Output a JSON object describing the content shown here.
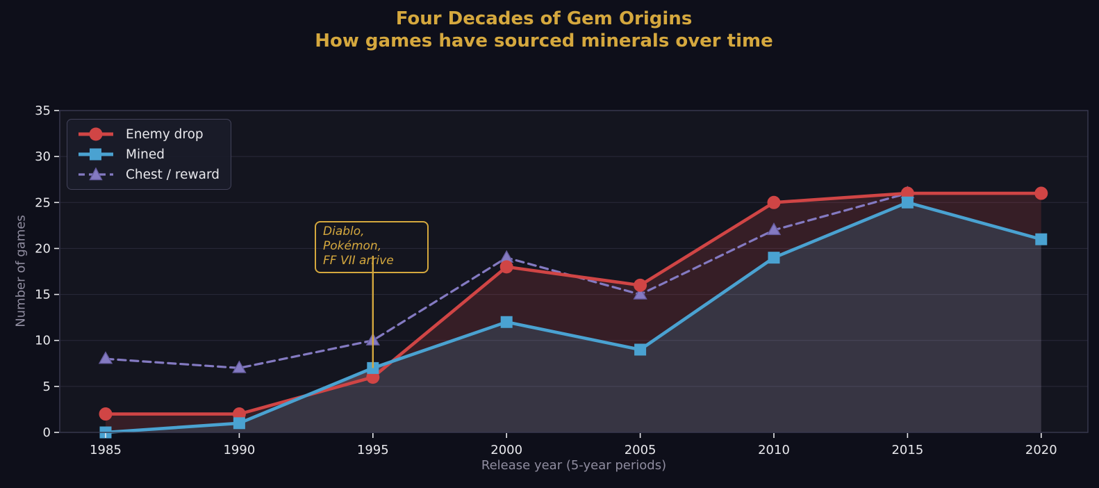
{
  "title": {
    "line1": "Four Decades of Gem Origins",
    "line2": "How games have sourced minerals over time"
  },
  "colors": {
    "accent": "#d5a83e",
    "figure_background": "#0e0f1a",
    "plot_background": "#14151f",
    "grid": "#2a2a3b",
    "spine": "#3a3a50",
    "tick_text": "#e9e9ed",
    "axis_label_text": "#8f8c9f",
    "fill_between_enemy_mined": "rgba(209,73,73,0.18)",
    "fill_under_mined": "rgba(195,185,215,0.20)"
  },
  "annotation": {
    "line1": "Diablo, Pokémon,",
    "line2": "FF VII arrive",
    "target_year": 1995,
    "target_value": 7
  },
  "chart_data": {
    "type": "line",
    "title": "Four Decades of Gem Origins — How games have sourced minerals over time",
    "xlabel": "Release year (5-year periods)",
    "ylabel": "Number of games",
    "x": [
      1985,
      1990,
      1995,
      2000,
      2005,
      2010,
      2015,
      2020
    ],
    "yticks": [
      0,
      5,
      10,
      15,
      20,
      25,
      30,
      35
    ],
    "ylim": [
      0,
      35
    ],
    "grid": "horizontal",
    "legend_position": "upper left",
    "series": [
      {
        "name": "Enemy drop",
        "color": "#d04545",
        "marker": "circle",
        "linestyle": "solid",
        "x": [
          1985,
          1990,
          1995,
          2000,
          2005,
          2010,
          2015,
          2020
        ],
        "values": [
          2,
          2,
          6,
          18,
          16,
          25,
          26,
          26
        ]
      },
      {
        "name": "Mined",
        "color": "#4aa2d1",
        "marker": "square",
        "linestyle": "solid",
        "x": [
          1985,
          1990,
          1995,
          2000,
          2005,
          2010,
          2015,
          2020
        ],
        "values": [
          0,
          1,
          7,
          12,
          9,
          19,
          25,
          21
        ]
      },
      {
        "name": "Chest / reward",
        "color": "#847ac2",
        "marker": "triangle",
        "linestyle": "dashed",
        "x": [
          1985,
          1990,
          1995,
          2000,
          2005,
          2010,
          2015
        ],
        "values": [
          8,
          7,
          10,
          19,
          15,
          22,
          26
        ]
      }
    ],
    "fills": [
      {
        "kind": "between",
        "upper": "Enemy drop",
        "lower": "Mined"
      },
      {
        "kind": "under",
        "series": "Mined"
      }
    ]
  }
}
